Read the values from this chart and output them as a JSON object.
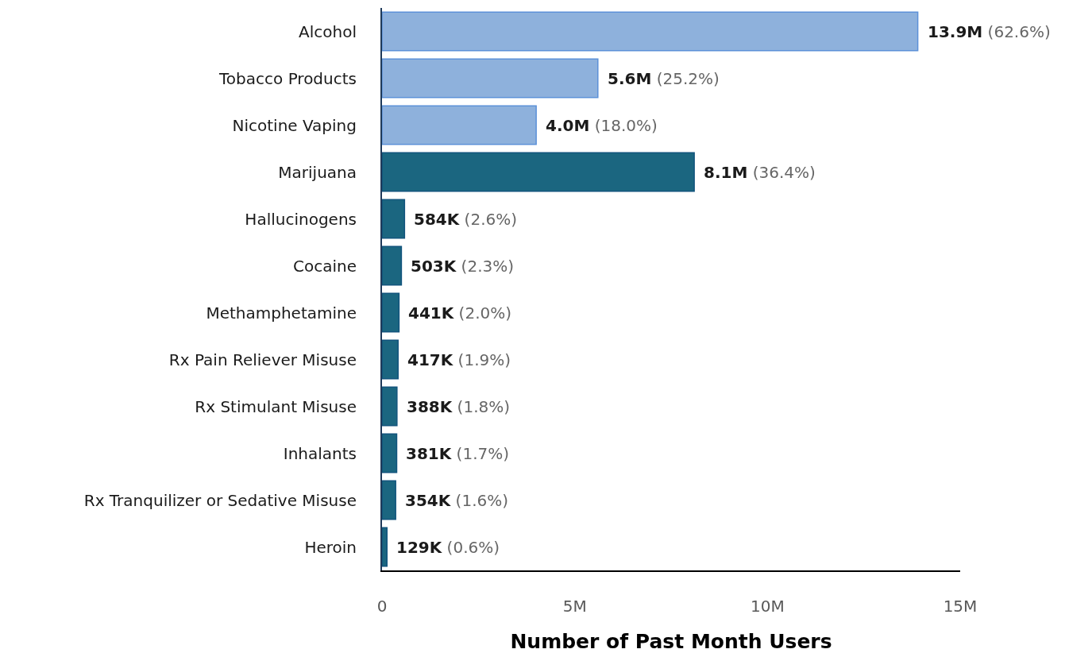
{
  "chart_data": {
    "type": "bar",
    "orientation": "horizontal",
    "categories": [
      "Alcohol",
      "Tobacco Products",
      "Nicotine Vaping",
      "Marijuana",
      "Hallucinogens",
      "Cocaine",
      "Methamphetamine",
      "Rx Pain Reliever Misuse",
      "Rx Stimulant Misuse",
      "Inhalants",
      "Rx Tranquilizer or Sedative Misuse",
      "Heroin"
    ],
    "values": [
      13900000,
      5600000,
      4000000,
      8100000,
      584000,
      503000,
      441000,
      417000,
      388000,
      381000,
      354000,
      129000
    ],
    "colors": [
      "#8eb1dc",
      "#8eb1dc",
      "#8eb1dc",
      "#1b6680",
      "#1b6680",
      "#1b6680",
      "#1b6680",
      "#1b6680",
      "#1b6680",
      "#1b6680",
      "#1b6680",
      "#1b6680"
    ],
    "value_labels": [
      "13.9M (62.6%)",
      "5.6M (25.2%)",
      "4.0M (18.0%)",
      "8.1M (36.4%)",
      "584K (2.6%)",
      "503K (2.3%)",
      "441K (2.0%)",
      "417K (1.9%)",
      "388K (1.8%)",
      "381K (1.7%)",
      "354K (1.6%)",
      "129K (0.6%)"
    ],
    "xlabel": "Number of Past Month Users",
    "xlim": [
      0,
      15000000
    ],
    "xticks": [
      0,
      {
        "value": 5000000,
        "label": "5M"
      },
      {
        "value": 10000000,
        "label": "10M"
      },
      {
        "value": 15000000,
        "label": "15M"
      }
    ]
  }
}
